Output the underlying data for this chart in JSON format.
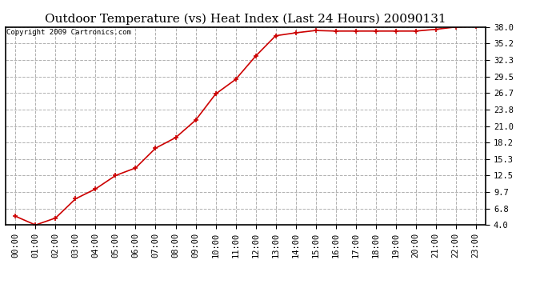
{
  "title": "Outdoor Temperature (vs) Heat Index (Last 24 Hours) 20090131",
  "copyright": "Copyright 2009 Cartronics.com",
  "x_labels": [
    "00:00",
    "01:00",
    "02:00",
    "03:00",
    "04:00",
    "05:00",
    "06:00",
    "07:00",
    "08:00",
    "09:00",
    "10:00",
    "11:00",
    "12:00",
    "13:00",
    "14:00",
    "15:00",
    "16:00",
    "17:00",
    "18:00",
    "19:00",
    "20:00",
    "21:00",
    "22:00",
    "23:00"
  ],
  "y_values": [
    5.5,
    4.0,
    5.2,
    8.5,
    10.2,
    12.5,
    13.8,
    17.2,
    19.0,
    22.0,
    26.5,
    29.0,
    33.0,
    36.5,
    37.0,
    37.4,
    37.3,
    37.3,
    37.3,
    37.3,
    37.3,
    37.6,
    38.0,
    38.1
  ],
  "y_ticks": [
    4.0,
    6.8,
    9.7,
    12.5,
    15.3,
    18.2,
    21.0,
    23.8,
    26.7,
    29.5,
    32.3,
    35.2,
    38.0
  ],
  "ylim": [
    4.0,
    38.0
  ],
  "line_color": "#cc0000",
  "marker": "+",
  "marker_color": "#cc0000",
  "marker_size": 5,
  "marker_linewidth": 1.2,
  "background_color": "#ffffff",
  "grid_color": "#b0b0b0",
  "title_fontsize": 11,
  "copyright_fontsize": 6.5,
  "tick_fontsize": 7.5
}
